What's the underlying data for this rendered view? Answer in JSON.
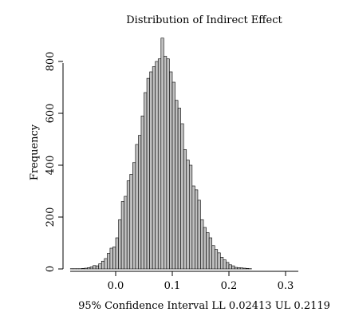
{
  "chart_data": {
    "type": "bar",
    "subtype": "histogram",
    "title": "Distribution of Indirect Effect",
    "xlabel": "95% Confidence Interval LL 0.02413 UL 0.2119",
    "ylabel": "Frequency",
    "xlim": [
      -0.08,
      0.32
    ],
    "ylim": [
      0,
      800
    ],
    "x_ticks": [
      0.0,
      0.1,
      0.2,
      0.3
    ],
    "x_tick_labels": [
      "0.0",
      "0.1",
      "0.2",
      "0.3"
    ],
    "y_ticks": [
      0,
      200,
      400,
      600,
      800
    ],
    "y_tick_labels": [
      "0",
      "200",
      "400",
      "600",
      "800"
    ],
    "bin_width": 0.005,
    "bin_start": -0.08,
    "values": [
      1,
      1,
      1,
      1,
      2,
      3,
      5,
      8,
      13,
      12,
      20,
      30,
      40,
      60,
      80,
      85,
      120,
      190,
      260,
      280,
      340,
      365,
      410,
      480,
      515,
      590,
      680,
      735,
      760,
      780,
      800,
      810,
      890,
      820,
      810,
      760,
      720,
      650,
      620,
      560,
      460,
      420,
      400,
      320,
      305,
      265,
      190,
      160,
      140,
      120,
      90,
      75,
      62,
      45,
      35,
      25,
      16,
      12,
      6,
      5,
      4,
      3,
      2,
      1
    ],
    "bar_color": "#c0c0c0",
    "edge_color": "#000000",
    "grid": false,
    "legend": "none"
  }
}
